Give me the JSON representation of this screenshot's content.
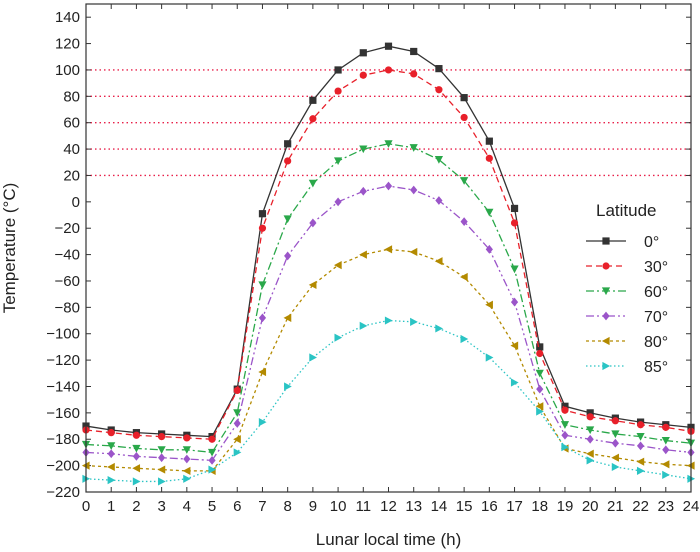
{
  "chart_data": {
    "type": "line",
    "xlabel": "Lunar local time (h)",
    "ylabel": "Temperature (°C)",
    "xlim": [
      0,
      24
    ],
    "ylim": [
      -220,
      150
    ],
    "x_ticks": [
      0,
      1,
      2,
      3,
      4,
      5,
      6,
      7,
      8,
      9,
      10,
      11,
      12,
      13,
      14,
      15,
      16,
      17,
      18,
      19,
      20,
      21,
      22,
      23,
      24
    ],
    "y_ticks": [
      140,
      120,
      100,
      80,
      60,
      40,
      20,
      0,
      -20,
      -40,
      -60,
      -80,
      -100,
      -120,
      -140,
      -160,
      -180,
      -200,
      -220
    ],
    "reference_lines": [
      100,
      80,
      60,
      40,
      20
    ],
    "reference_color": "#e8204a",
    "legend": {
      "title": "Latitude",
      "position": "right"
    },
    "x": [
      0,
      1,
      2,
      3,
      4,
      5,
      6,
      7,
      8,
      9,
      10,
      11,
      12,
      13,
      14,
      15,
      16,
      17,
      18,
      19,
      20,
      21,
      22,
      23,
      24
    ],
    "series": [
      {
        "name": "0°",
        "color": "#333333",
        "marker": "square",
        "dash": "solid",
        "values": [
          -170,
          -173,
          -175,
          -176,
          -177,
          -178,
          -142,
          -9,
          44,
          77,
          100,
          113,
          118,
          114,
          101,
          79,
          46,
          -5,
          -110,
          -155,
          -160,
          -164,
          -167,
          -169,
          -171
        ]
      },
      {
        "name": "30°",
        "color": "#e8202a",
        "marker": "circle",
        "dash": "dashed",
        "values": [
          -173,
          -175,
          -177,
          -178,
          -179,
          -180,
          -143,
          -20,
          31,
          63,
          84,
          96,
          100,
          97,
          85,
          64,
          33,
          -16,
          -115,
          -158,
          -163,
          -166,
          -169,
          -171,
          -174
        ]
      },
      {
        "name": "60°",
        "color": "#2aa84a",
        "marker": "triangle-down",
        "dash": "dashdot",
        "values": [
          -184,
          -185,
          -187,
          -188,
          -188,
          -190,
          -160,
          -63,
          -13,
          14,
          31,
          40,
          44,
          41,
          32,
          16,
          -8,
          -51,
          -130,
          -169,
          -173,
          -176,
          -178,
          -181,
          -183
        ]
      },
      {
        "name": "70°",
        "color": "#9b55c9",
        "marker": "diamond",
        "dash": "dashdotdot",
        "values": [
          -190,
          -191,
          -193,
          -194,
          -195,
          -196,
          -168,
          -88,
          -41,
          -16,
          0,
          8,
          12,
          9,
          1,
          -15,
          -36,
          -76,
          -142,
          -177,
          -180,
          -183,
          -185,
          -188,
          -190
        ]
      },
      {
        "name": "80°",
        "color": "#b38a00",
        "marker": "triangle-left",
        "dash": "shortdash",
        "values": [
          -200,
          -201,
          -202,
          -203,
          -204,
          -204,
          -180,
          -129,
          -88,
          -63,
          -48,
          -40,
          -36,
          -38,
          -45,
          -57,
          -78,
          -109,
          -155,
          -187,
          -191,
          -194,
          -197,
          -199,
          -200
        ]
      },
      {
        "name": "85°",
        "color": "#2ac4c4",
        "marker": "triangle-right",
        "dash": "dotted",
        "values": [
          -210,
          -211,
          -212,
          -212,
          -210,
          -203,
          -190,
          -167,
          -140,
          -118,
          -103,
          -94,
          -90,
          -91,
          -96,
          -104,
          -118,
          -137,
          -159,
          -186,
          -196,
          -201,
          -204,
          -207,
          -210
        ]
      }
    ]
  }
}
